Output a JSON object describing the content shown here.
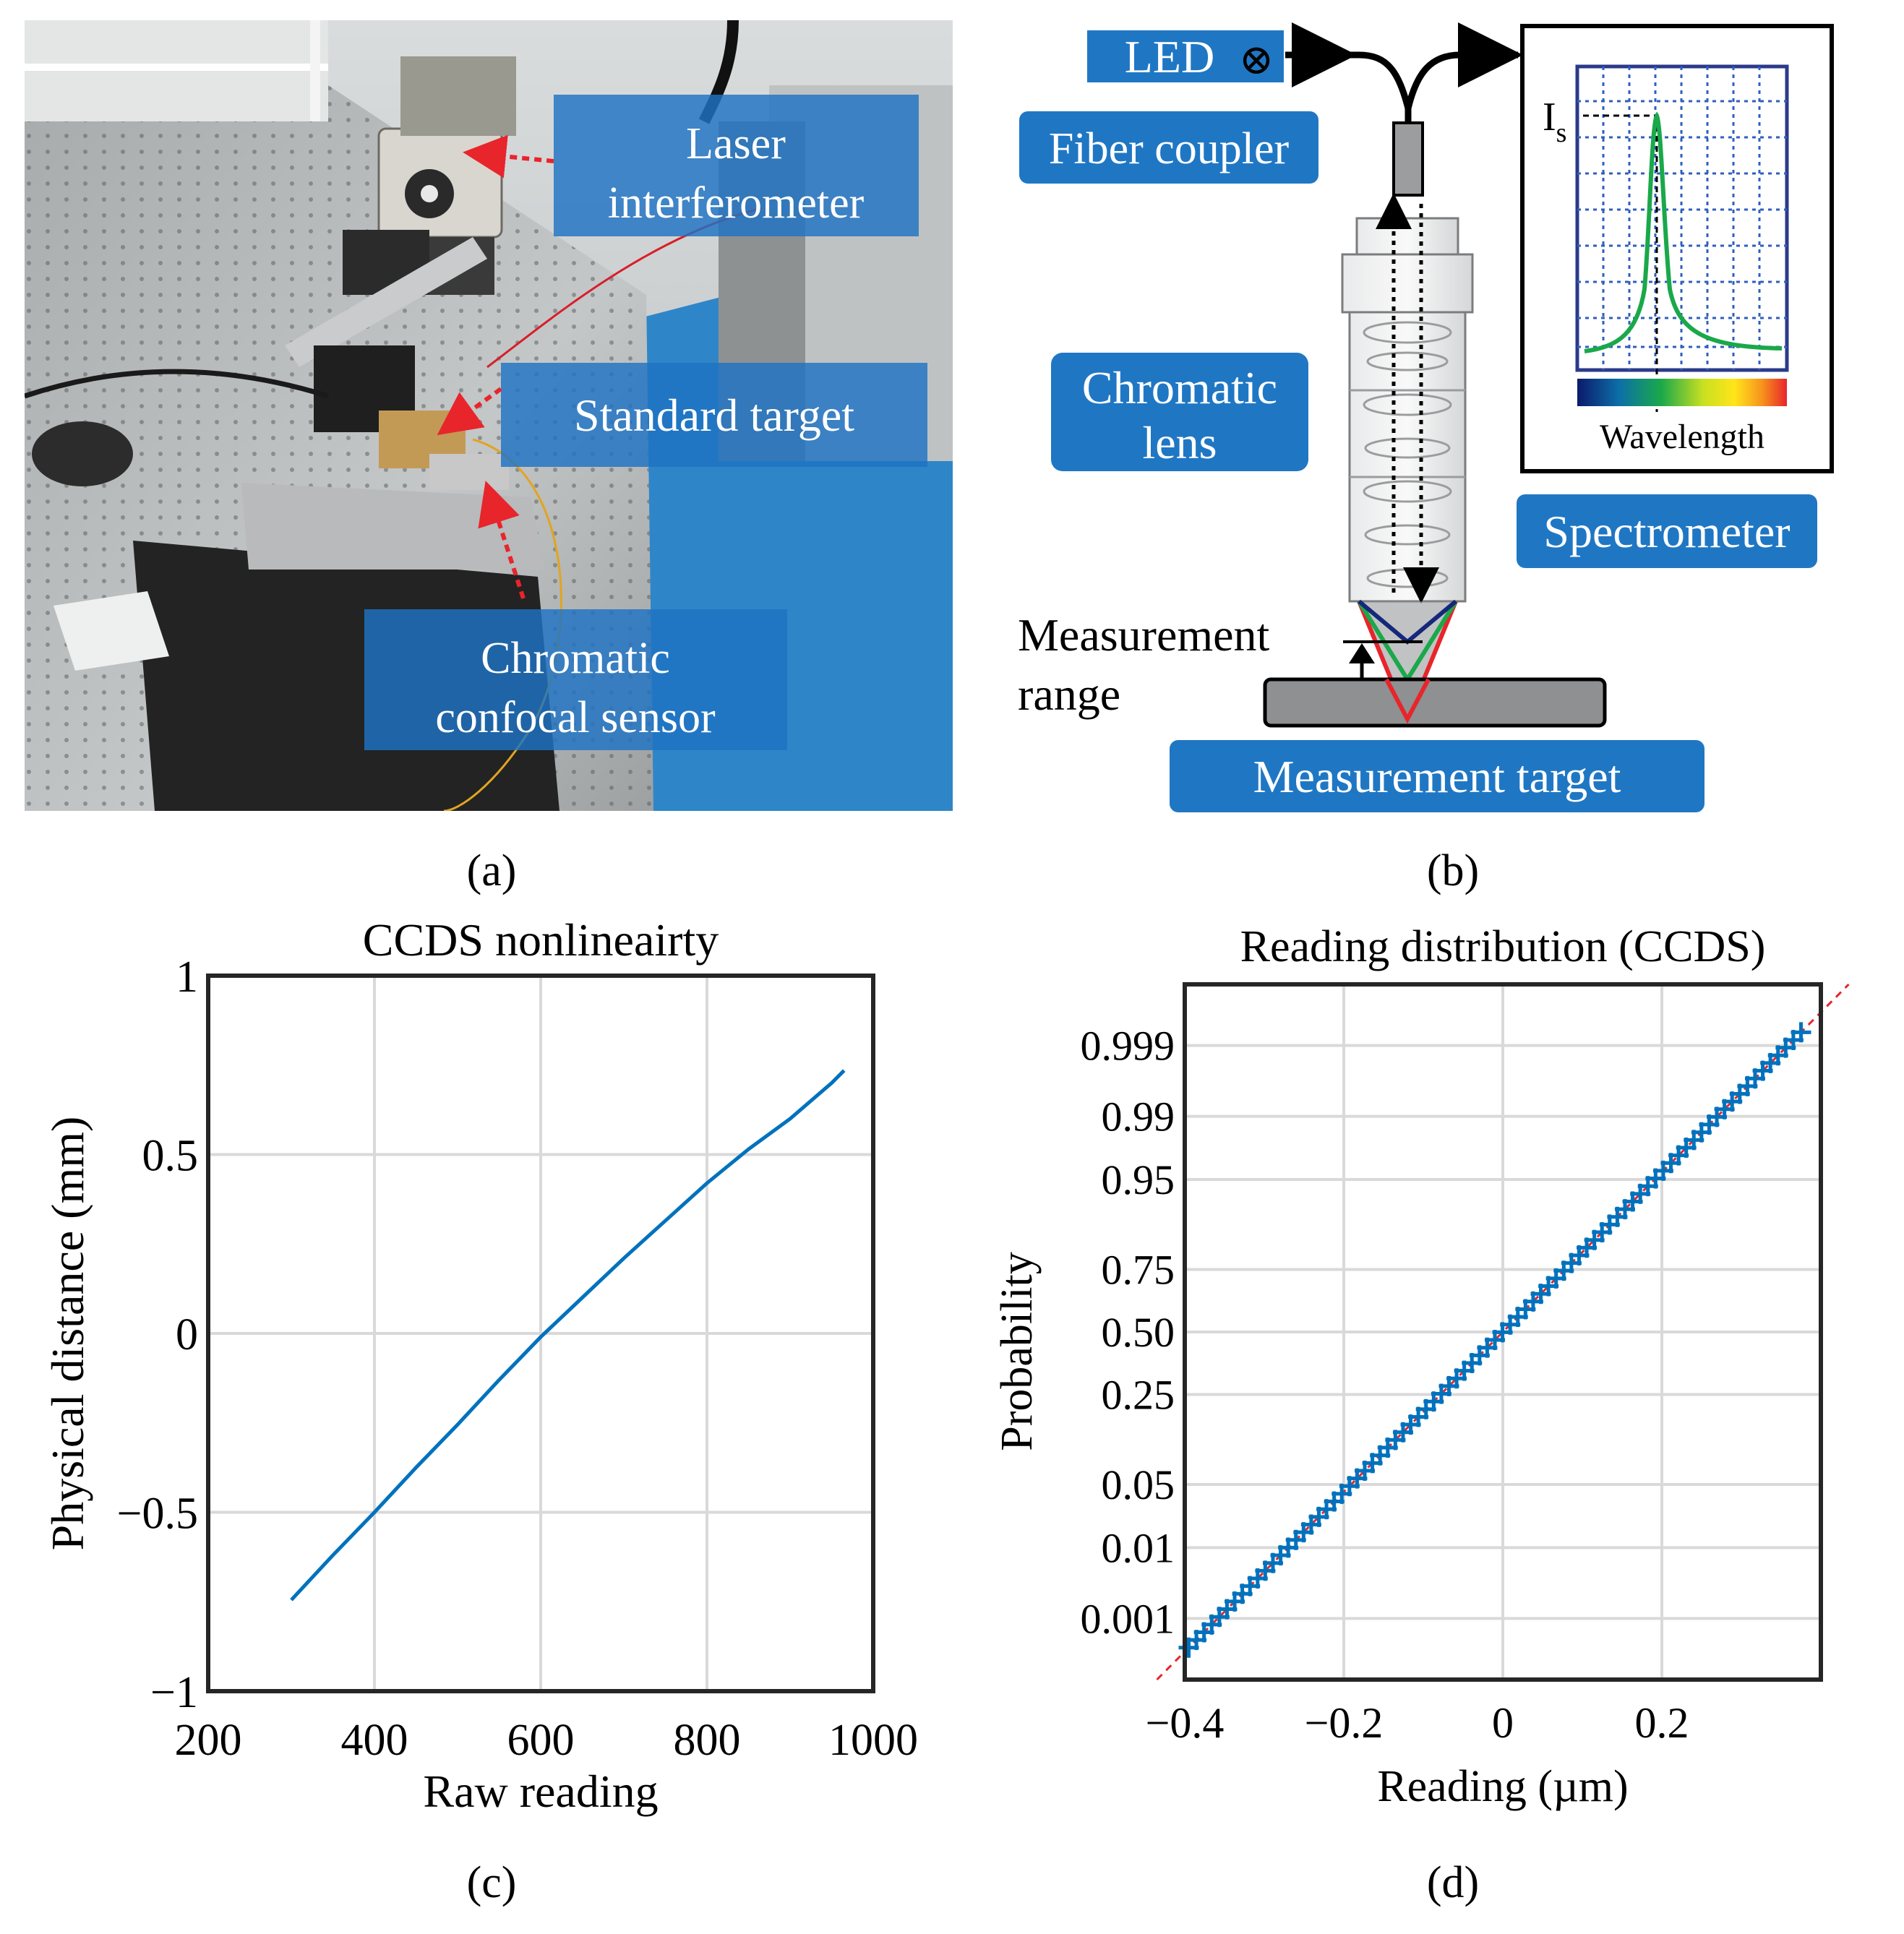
{
  "panel_a": {
    "caption": "(a)",
    "labels": {
      "laser": [
        "Laser",
        "interferometer"
      ],
      "standard": "Standard target",
      "sensor": [
        "Chromatic",
        "confocal sensor"
      ]
    },
    "colors": {
      "label_bg": "#2f7fc6",
      "arrow": "#e8252b"
    }
  },
  "panel_b": {
    "caption": "(b)",
    "led": "LED",
    "led_symbol": "⊗",
    "fiber_coupler": "Fiber coupler",
    "chromatic_lens": [
      "Chromatic",
      "lens"
    ],
    "spectrometer": "Spectrometer",
    "measurement_range": [
      "Measurement",
      "range"
    ],
    "measurement_target": "Measurement target",
    "spectrum": {
      "peak_label": "I",
      "peak_sub": "s",
      "xlabel": "Wavelength"
    },
    "colors": {
      "label_bg": "#1f77c4",
      "curve": "#1aa84a",
      "led_bg": "#1f77c4"
    }
  },
  "panel_c": {
    "caption": "(c)",
    "chart_data": {
      "type": "line",
      "title": "CCDS nonlineairty",
      "xlabel": "Raw reading",
      "ylabel": "Physical distance (mm)",
      "xlim": [
        200,
        1000
      ],
      "ylim": [
        -1,
        1
      ],
      "xticks": [
        200,
        400,
        600,
        800,
        1000
      ],
      "yticks": [
        -1,
        -0.5,
        0,
        0.5,
        1
      ],
      "ytick_labels": [
        "−1",
        "−0.5",
        "0",
        "0.5",
        "1"
      ],
      "grid": true,
      "color": "#0072bd",
      "series": [
        {
          "x": [
            300,
            350,
            400,
            450,
            500,
            550,
            600,
            650,
            700,
            750,
            800,
            850,
            900,
            950,
            965
          ],
          "y": [
            -0.745,
            -0.62,
            -0.5,
            -0.375,
            -0.255,
            -0.13,
            -0.01,
            0.1,
            0.21,
            0.315,
            0.42,
            0.515,
            0.6,
            0.7,
            0.735
          ]
        }
      ]
    }
  },
  "panel_d": {
    "caption": "(d)",
    "chart_data": {
      "type": "scatter",
      "title": "Reading distribution (CCDS)",
      "xlabel": "Reading (µm)",
      "ylabel": "Probability",
      "xlim": [
        -0.4,
        0.4
      ],
      "xticks": [
        -0.4,
        -0.2,
        0,
        0.2
      ],
      "xtick_labels": [
        "−0.4",
        "−0.2",
        "0",
        "0.2"
      ],
      "ytick_labels": [
        "0.001",
        "0.01",
        "0.05",
        "0.25",
        "0.50",
        "0.75",
        "0.95",
        "0.99",
        "0.999"
      ],
      "yticks": [
        0.001,
        0.01,
        0.05,
        0.25,
        0.5,
        0.75,
        0.95,
        0.99,
        0.999
      ],
      "y_scale": "normal probability",
      "grid": true,
      "marker": "+",
      "color": "#0072bd",
      "reference_line_color": "#e8252b",
      "mean": 0.0,
      "std": 0.116,
      "n_points": 81,
      "x_range": [
        -0.395,
        0.375
      ]
    }
  }
}
